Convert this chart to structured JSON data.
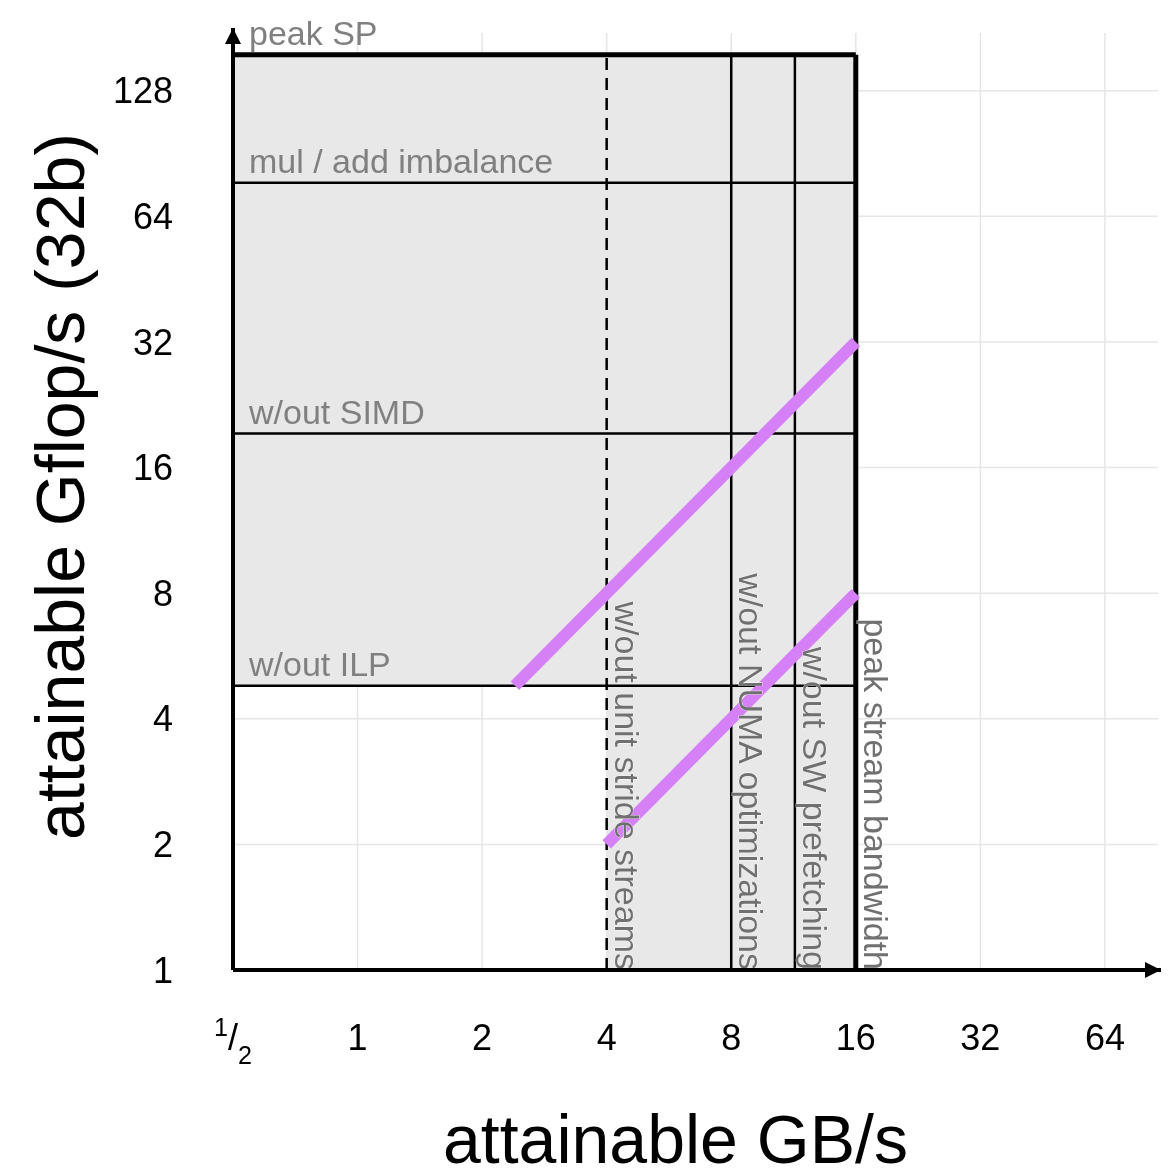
{
  "chart_data": {
    "type": "line",
    "xlabel": "attainable GB/s",
    "ylabel": "attainable Gflop/s (32b)",
    "log": "xy",
    "grid": true,
    "line_style": "solid",
    "xlim": [
      0.5,
      86
    ],
    "ylim": [
      1,
      176
    ],
    "xticks": [
      {
        "value": 0.5,
        "label": "$^{1}$/$_{2}$"
      },
      1,
      2,
      4,
      8,
      16,
      32,
      64
    ],
    "yticks": [
      1,
      2,
      4,
      8,
      16,
      32,
      64,
      128
    ],
    "series": [
      {
        "color": "#d580f7",
        "x": [
          2.4,
          16
        ],
        "values": [
          4.8,
          32
        ]
      },
      {
        "color": "#d580f7",
        "x": [
          4,
          16
        ],
        "values": [
          2,
          8
        ]
      }
    ],
    "ref_lines": [
      {
        "axis": "y",
        "value": 156,
        "label": "peak SP",
        "color": "#000000"
      },
      {
        "axis": "y",
        "value": 77,
        "label": "mul / add imbalance",
        "color": "#000000"
      },
      {
        "axis": "y",
        "value": 19.3,
        "label": "w/out SIMD",
        "color": "#000000"
      },
      {
        "axis": "y",
        "value": 4.8,
        "label": "w/out ILP",
        "color": "#000000"
      },
      {
        "axis": "x",
        "value": 4,
        "label": "w/out unit stride streams",
        "color": "#000000",
        "line_style": "dashed"
      },
      {
        "axis": "x",
        "value": 8,
        "label": "w/out NUMA optimizations",
        "color": "#000000"
      },
      {
        "axis": "x",
        "value": 11.4,
        "label": "w/out SW prefetching",
        "color": "#000000"
      },
      {
        "axis": "x",
        "value": 16,
        "label": "peak stream bandwidth",
        "color": "#000000"
      }
    ],
    "bands": [
      {
        "axis": "y",
        "from": 4.8,
        "to": 156,
        "color": "#e8e8e8"
      },
      {
        "axis": "x",
        "from": 4,
        "to": 16,
        "color": "#e8e8e8"
      }
    ]
  }
}
